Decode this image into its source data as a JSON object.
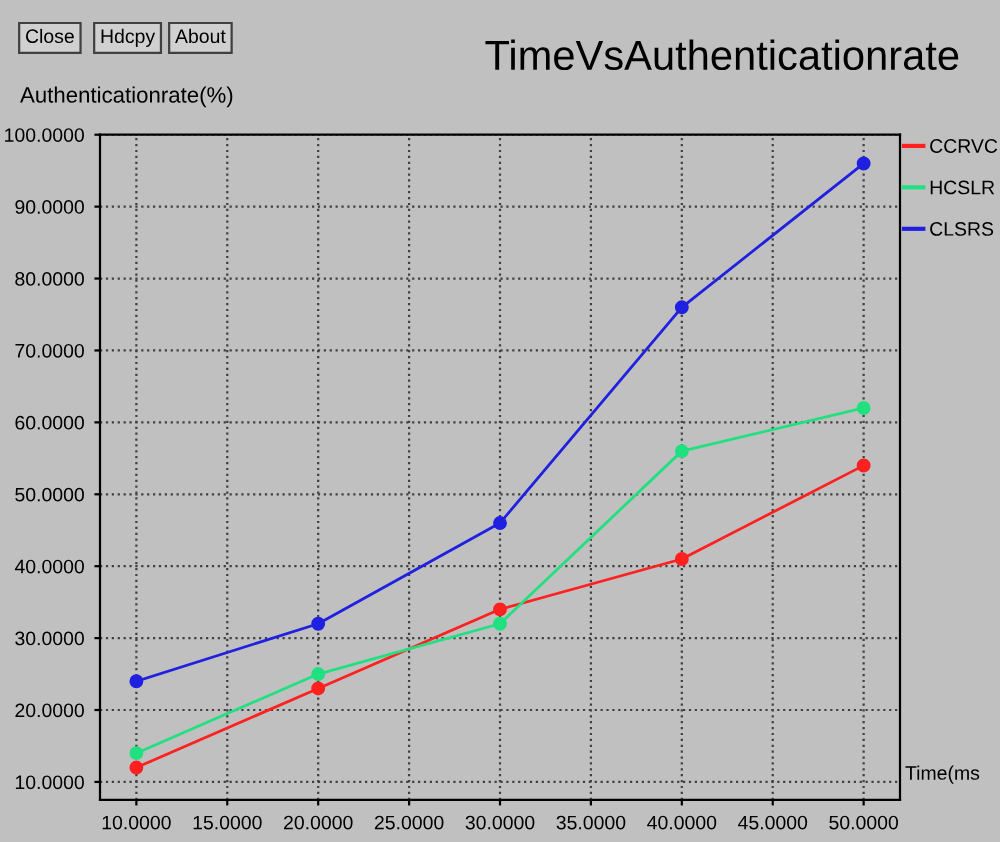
{
  "chart_data": {
    "type": "line",
    "title": "TimeVsAuthenticationrate",
    "xlabel": "Time(ms",
    "ylabel": "Authenticationrate(%)",
    "annotations": [
      "Close",
      "Hdcpy",
      "About"
    ],
    "x": [
      10,
      20,
      30,
      40,
      50
    ],
    "series": [
      {
        "name": "CCRVC",
        "color": "#ff2020",
        "values": [
          12,
          23,
          34,
          41,
          54
        ]
      },
      {
        "name": "HCSLR",
        "color": "#20e080",
        "values": [
          14,
          25,
          32,
          56,
          62
        ]
      },
      {
        "name": "CLSRS",
        "color": "#2020e0",
        "values": [
          24,
          32,
          46,
          76,
          96
        ]
      }
    ],
    "xlim": [
      8,
      52
    ],
    "ylim": [
      7.5,
      100
    ],
    "xticks": [
      {
        "value": 10,
        "label": "10.0000"
      },
      {
        "value": 15,
        "label": "15.0000"
      },
      {
        "value": 20,
        "label": "20.0000"
      },
      {
        "value": 25,
        "label": "25.0000"
      },
      {
        "value": 30,
        "label": "30.0000"
      },
      {
        "value": 35,
        "label": "35.0000"
      },
      {
        "value": 40,
        "label": "40.0000"
      },
      {
        "value": 45,
        "label": "45.0000"
      },
      {
        "value": 50,
        "label": "50.0000"
      }
    ],
    "yticks": [
      {
        "value": 10,
        "label": "10.0000"
      },
      {
        "value": 20,
        "label": "20.0000"
      },
      {
        "value": 30,
        "label": "30.0000"
      },
      {
        "value": 40,
        "label": "40.0000"
      },
      {
        "value": 50,
        "label": "50.0000"
      },
      {
        "value": 60,
        "label": "60.0000"
      },
      {
        "value": 70,
        "label": "70.0000"
      },
      {
        "value": 80,
        "label": "80.0000"
      },
      {
        "value": 90,
        "label": "90.0000"
      },
      {
        "value": 100,
        "label": "100.0000"
      }
    ],
    "grid": true,
    "legend": "right",
    "marker": "circle",
    "line_style": "solid"
  }
}
